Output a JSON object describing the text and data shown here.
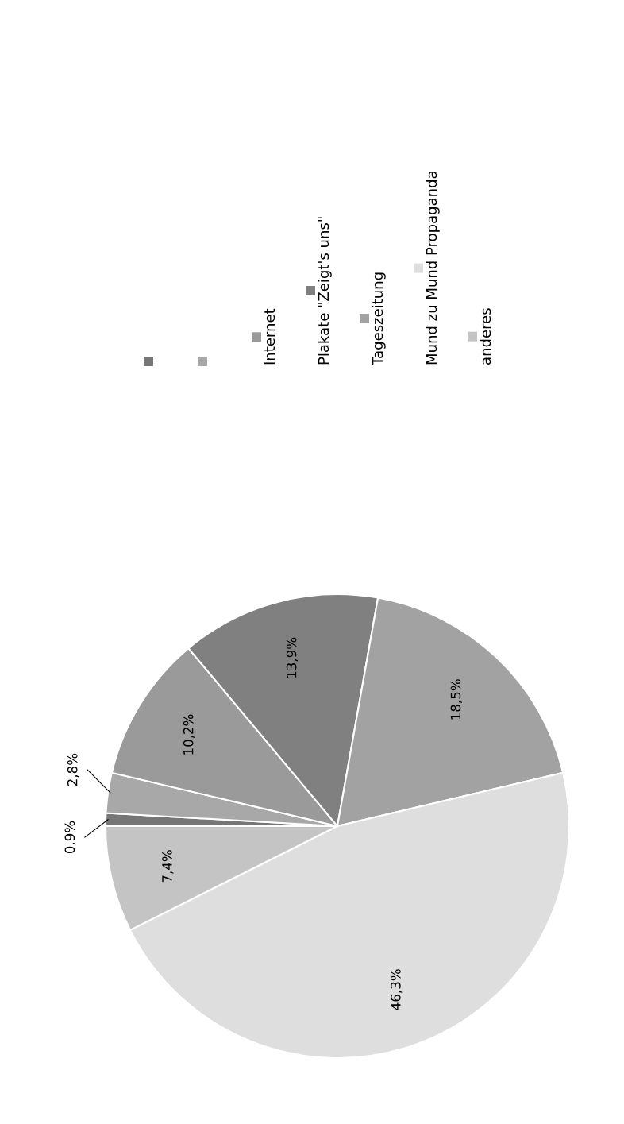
{
  "chart_data": {
    "type": "pie",
    "categories": [
      null,
      null,
      "Internet",
      "Plakate \"Zeigt's uns\"",
      "Tageszeitung",
      "Mund zu Mund Propaganda",
      "anderes"
    ],
    "values": [
      0.9,
      2.8,
      10.2,
      13.9,
      18.5,
      46.3,
      7.4
    ],
    "colors": [
      "#767676",
      "#a8a8a8",
      "#9a9a9a",
      "#808080",
      "#a2a2a2",
      "#dedede",
      "#c4c4c4"
    ],
    "value_labels": [
      "0,9%",
      "2,8%",
      "10,2%",
      "13,9%",
      "18,5%",
      "46,3%",
      "7,4%"
    ],
    "legend": "top"
  }
}
